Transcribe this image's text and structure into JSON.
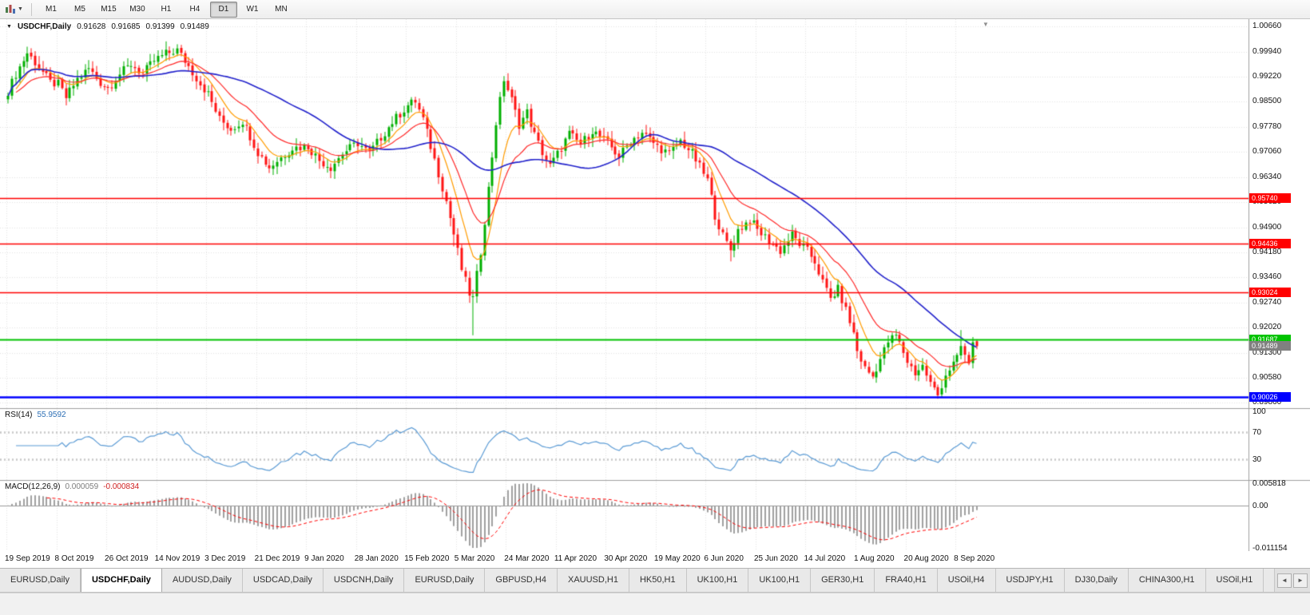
{
  "toolbar": {
    "dropdown_caret": "▼",
    "timeframes": [
      "M1",
      "M5",
      "M15",
      "M30",
      "H1",
      "H4",
      "D1",
      "W1",
      "MN"
    ],
    "active_timeframe": "D1"
  },
  "chart_header": {
    "collapse_caret": "▼",
    "symbol": "USDCHF,Daily",
    "ohlc": {
      "open": "0.91628",
      "high": "0.91685",
      "low": "0.91399",
      "close": "0.91489"
    }
  },
  "chart_data": {
    "type": "candlestick",
    "symbol": "USDCHF",
    "timeframe": "Daily",
    "candle_count": 253,
    "label_every": 13,
    "date_labels": [
      "19 Sep 2019",
      "8 Oct 2019",
      "26 Oct 2019",
      "14 Nov 2019",
      "3 Dec 2019",
      "21 Dec 2019",
      "9 Jan 2020",
      "28 Jan 2020",
      "15 Feb 2020",
      "5 Mar 2020",
      "24 Mar 2020",
      "11 Apr 2020",
      "30 Apr 2020",
      "19 May 2020",
      "6 Jun 2020",
      "25 Jun 2020",
      "14 Jul 2020",
      "1 Aug 2020",
      "20 Aug 2020",
      "8 Sep 2020"
    ],
    "price_axis_labels": [
      "1.00660",
      "0.99940",
      "0.99220",
      "0.98500",
      "0.97780",
      "0.97060",
      "0.96340",
      "0.95620",
      "0.94900",
      "0.94180",
      "0.93460",
      "0.92740",
      "0.92020",
      "0.91300",
      "0.90580",
      "0.89860"
    ],
    "price_range": {
      "max": 1.0087,
      "min": 0.8971
    },
    "close_anchors": [
      [
        0,
        0.988
      ],
      [
        2,
        0.993
      ],
      [
        5,
        0.999
      ],
      [
        8,
        0.995
      ],
      [
        11,
        0.9905
      ],
      [
        13,
        0.99
      ],
      [
        15,
        0.9862
      ],
      [
        18,
        0.9915
      ],
      [
        21,
        0.9945
      ],
      [
        24,
        0.9905
      ],
      [
        26,
        0.989
      ],
      [
        29,
        0.993
      ],
      [
        32,
        0.9958
      ],
      [
        35,
        0.993
      ],
      [
        38,
        0.9968
      ],
      [
        41,
        0.9988
      ],
      [
        44,
        0.9998
      ],
      [
        47,
        0.9952
      ],
      [
        50,
        0.9902
      ],
      [
        52,
        0.9872
      ],
      [
        55,
        0.98
      ],
      [
        58,
        0.9772
      ],
      [
        61,
        0.9795
      ],
      [
        63,
        0.9752
      ],
      [
        65,
        0.9705
      ],
      [
        68,
        0.9662
      ],
      [
        71,
        0.969
      ],
      [
        74,
        0.9718
      ],
      [
        78,
        0.9722
      ],
      [
        81,
        0.9682
      ],
      [
        84,
        0.9662
      ],
      [
        87,
        0.9702
      ],
      [
        91,
        0.9732
      ],
      [
        94,
        0.9702
      ],
      [
        97,
        0.9748
      ],
      [
        100,
        0.9792
      ],
      [
        104,
        0.984
      ],
      [
        106,
        0.9852
      ],
      [
        108,
        0.98
      ],
      [
        110,
        0.9722
      ],
      [
        112,
        0.9645
      ],
      [
        114,
        0.9565
      ],
      [
        116,
        0.947
      ],
      [
        118,
        0.937
      ],
      [
        120,
        0.93
      ],
      [
        121,
        0.9285
      ],
      [
        123,
        0.942
      ],
      [
        125,
        0.96
      ],
      [
        127,
        0.979
      ],
      [
        129,
        0.9915
      ],
      [
        131,
        0.9855
      ],
      [
        133,
        0.9785
      ],
      [
        135,
        0.982
      ],
      [
        137,
        0.9755
      ],
      [
        139,
        0.9705
      ],
      [
        141,
        0.9665
      ],
      [
        143,
        0.97
      ],
      [
        146,
        0.9758
      ],
      [
        149,
        0.9728
      ],
      [
        152,
        0.9768
      ],
      [
        156,
        0.9732
      ],
      [
        159,
        0.9692
      ],
      [
        162,
        0.9738
      ],
      [
        165,
        0.9762
      ],
      [
        169,
        0.9722
      ],
      [
        172,
        0.97
      ],
      [
        175,
        0.9738
      ],
      [
        178,
        0.9702
      ],
      [
        182,
        0.9625
      ],
      [
        184,
        0.9525
      ],
      [
        186,
        0.9465
      ],
      [
        188,
        0.9425
      ],
      [
        190,
        0.9482
      ],
      [
        193,
        0.9512
      ],
      [
        195,
        0.9482
      ],
      [
        198,
        0.9452
      ],
      [
        201,
        0.9422
      ],
      [
        204,
        0.9468
      ],
      [
        206,
        0.9442
      ],
      [
        208,
        0.9422
      ],
      [
        210,
        0.9392
      ],
      [
        212,
        0.9332
      ],
      [
        214,
        0.9285
      ],
      [
        216,
        0.9312
      ],
      [
        218,
        0.9252
      ],
      [
        220,
        0.9185
      ],
      [
        221,
        0.9135
      ],
      [
        223,
        0.9085
      ],
      [
        225,
        0.9062
      ],
      [
        227,
        0.9112
      ],
      [
        229,
        0.9162
      ],
      [
        231,
        0.918
      ],
      [
        233,
        0.9132
      ],
      [
        234,
        0.9105
      ],
      [
        236,
        0.9072
      ],
      [
        238,
        0.9092
      ],
      [
        240,
        0.9042
      ],
      [
        242,
        0.9008
      ],
      [
        244,
        0.9068
      ],
      [
        246,
        0.9098
      ],
      [
        247,
        0.9112
      ],
      [
        248,
        0.9148
      ],
      [
        249,
        0.9122
      ],
      [
        250,
        0.9092
      ],
      [
        251,
        0.916
      ],
      [
        252,
        0.91489
      ]
    ],
    "candle_overrides": {
      "5": {
        "high": 1.0008
      },
      "44": {
        "high": 1.0015
      },
      "116": {
        "low": 0.9435
      },
      "121": {
        "low": 0.918
      },
      "188": {
        "low": 0.9392
      },
      "242": {
        "low": 0.8998
      },
      "248": {
        "high": 0.9195
      },
      "251": {
        "low": 0.9085,
        "close": 0.916
      },
      "252": {
        "open": 0.91628,
        "high": 0.91685,
        "low": 0.91399,
        "close": 0.91489
      }
    },
    "hlines": [
      {
        "label": "0.95740",
        "price": 0.9574,
        "color": "#ff0000",
        "line_width": 1.5
      },
      {
        "label": "0.94436",
        "price": 0.94436,
        "color": "#ff0000",
        "line_width": 1.5
      },
      {
        "label": "0.93024",
        "price": 0.93024,
        "color": "#ff0000",
        "line_width": 1.5
      },
      {
        "label": "0.91687",
        "price": 0.91687,
        "color": "#00c300",
        "line_width": 2
      },
      {
        "label": "0.90026",
        "price": 0.90026,
        "color": "#0000ff",
        "line_width": 2.5
      }
    ],
    "current_price_tag": {
      "label": "0.91489",
      "price": 0.91489,
      "color": "#808080"
    },
    "shift_marker": "▼",
    "moving_averages": [
      {
        "name": "ma-slow-blue",
        "period": 42,
        "type": "sma",
        "color": "#2323cc",
        "width": 1.6
      },
      {
        "name": "ma-medium-red",
        "period": 18,
        "type": "ema",
        "color": "#ff2a2a",
        "width": 1.2
      },
      {
        "name": "ma-fast-orange",
        "period": 8,
        "type": "ema",
        "color": "#ff9c00",
        "width": 1.2
      }
    ],
    "candle_colors": {
      "bull": "#00b000",
      "bear": "#ff1414"
    },
    "grid_color": "#e3e3e3"
  },
  "indicators": {
    "rsi": {
      "label": "RSI(14)",
      "value": "55.9592",
      "period": 14,
      "levels": [
        30,
        70
      ],
      "axis_labels": [
        "100",
        "70",
        "30"
      ],
      "color": "#5b9bd5"
    },
    "macd": {
      "label": "MACD(12,26,9)",
      "main_value": "0.000059",
      "signal_value": "-0.000834",
      "fast": 12,
      "slow": 26,
      "signal": 9,
      "axis_labels": [
        "0.005818",
        "0.00",
        "-0.011154"
      ],
      "axis_max": 0.005818,
      "axis_min": -0.011154,
      "hist_color": "#a0a0a0",
      "signal_color": "#ff0000"
    }
  },
  "tabs": {
    "items": [
      "EURUSD,Daily",
      "USDCHF,Daily",
      "AUDUSD,Daily",
      "USDCAD,Daily",
      "USDCNH,Daily",
      "EURUSD,Daily",
      "GBPUSD,H4",
      "XAUUSD,H1",
      "HK50,H1",
      "UK100,H1",
      "UK100,H1",
      "GER30,H1",
      "FRA40,H1",
      "USOil,H4",
      "USDJPY,H1",
      "DJ30,Daily",
      "CHINA300,H1",
      "USOil,H1"
    ],
    "active_index": 1,
    "scroll_left": "◄",
    "scroll_right": "►"
  }
}
